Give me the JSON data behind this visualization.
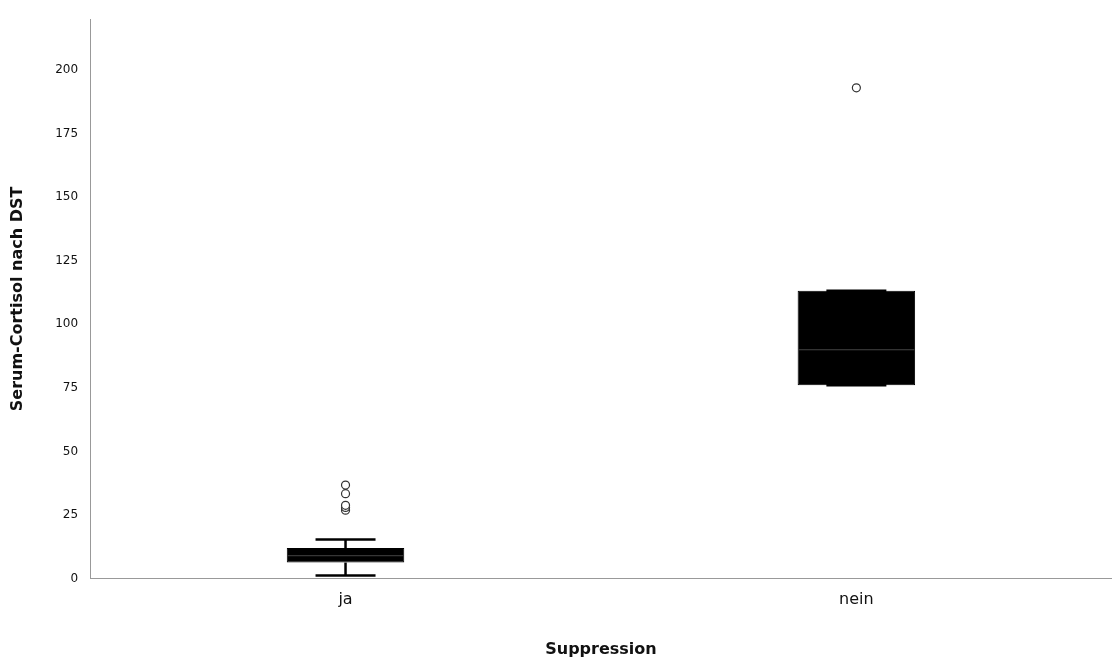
{
  "chart_data": {
    "type": "box",
    "xlabel": "Suppression",
    "ylabel": "Serum-Cortisol nach DST",
    "categories": [
      "ja",
      "nein"
    ],
    "color": "#000000",
    "boxes": [
      {
        "low": 1.2,
        "q1": 6.3,
        "median": 9,
        "q3": 12,
        "high": 15.4,
        "outliers": [
          26.9,
          28,
          28.8,
          33.4,
          36.8
        ]
      },
      {
        "low": 76,
        "q1": 76,
        "median": 90,
        "q3": 113.2,
        "high": 113.2,
        "outliers": [
          193
        ]
      }
    ],
    "ylim": [
      0,
      220
    ],
    "yticks": [
      0,
      25,
      50,
      75,
      100,
      125,
      150,
      175,
      200
    ],
    "grid": false
  }
}
